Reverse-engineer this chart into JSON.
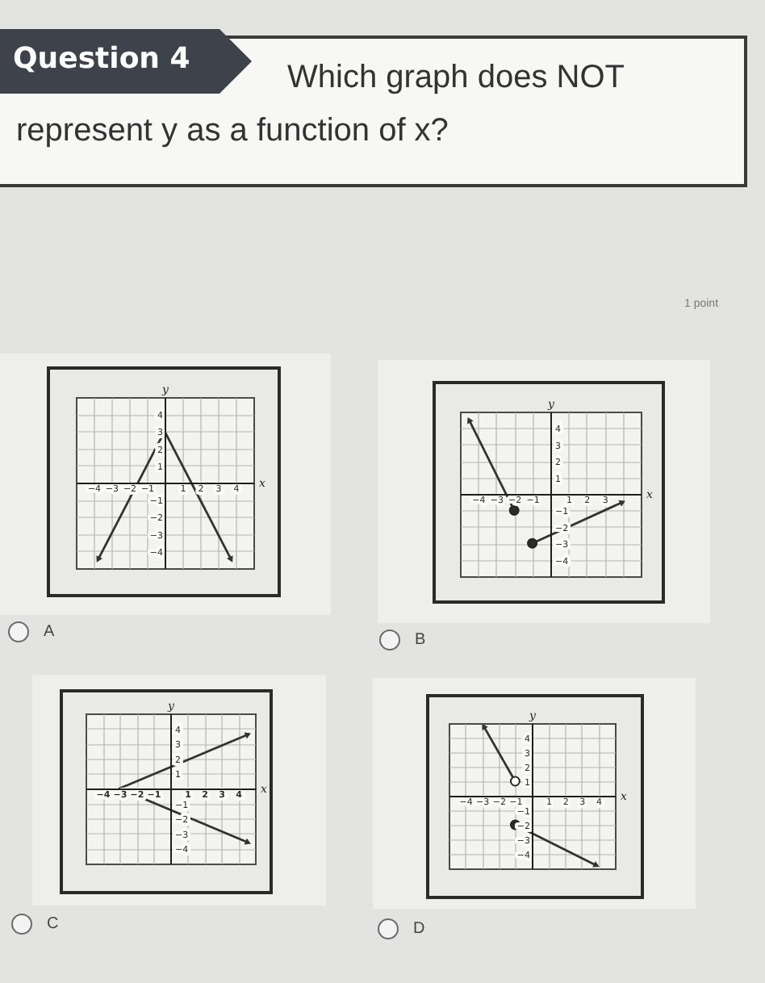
{
  "chart_data": [
    {
      "type": "line",
      "title": "A",
      "xlabel": "x",
      "ylabel": "y",
      "annotations": [
        "Question 4",
        "Which graph does NOT represent y as a function of x?",
        "1 point"
      ],
      "xlim": [
        -5,
        5
      ],
      "ylim": [
        -5,
        5
      ],
      "xticks": [
        -4,
        -3,
        -2,
        -1,
        1,
        2,
        3,
        4
      ],
      "yticks": [
        -4,
        -3,
        -2,
        -1,
        1,
        2,
        3,
        4
      ],
      "grid": true,
      "series": [
        {
          "color": "#333333",
          "x": [
            -3.75,
            0,
            3.75
          ],
          "values": [
            -4.5,
            3,
            -4.5
          ]
        }
      ]
    },
    {
      "type": "line",
      "title": "B",
      "xlabel": "x",
      "ylabel": "y",
      "xlim": [
        -5,
        5
      ],
      "ylim": [
        -5,
        5
      ],
      "xticks": [
        -4,
        -3,
        -2,
        -1,
        1,
        2,
        3,
        {
          "value": 4,
          "label": null
        }
      ],
      "yticks": [
        -4,
        -3,
        -2,
        -1,
        1,
        2,
        3,
        4
      ],
      "grid": true,
      "series": [
        {
          "color": "#333333",
          "x": [
            -4.5,
            -2
          ],
          "values": [
            4.5,
            -1
          ]
        },
        {
          "color": "#333333",
          "x": [
            -1,
            4
          ],
          "values": [
            -3,
            -0.5
          ]
        },
        {
          "type": "scatter",
          "marker": "circle",
          "color": "#2b2b2b",
          "x": [
            -2,
            -1
          ],
          "values": [
            -1,
            -3
          ]
        }
      ]
    },
    {
      "type": "line",
      "title": "C",
      "xlabel": "x",
      "ylabel": "y",
      "xlim": [
        -5,
        5
      ],
      "ylim": [
        -5,
        5
      ],
      "xticks": [
        -4,
        -3,
        -2,
        -1,
        1,
        2,
        3,
        4
      ],
      "yticks": [
        -4,
        -3,
        -2,
        -1,
        1,
        2,
        3,
        4
      ],
      "grid": true,
      "series": [
        {
          "color": "#333333",
          "x": [
            4.6,
            -3,
            4.6
          ],
          "values": [
            3.6,
            0,
            -3.6
          ]
        }
      ]
    },
    {
      "type": "line",
      "title": "D",
      "xlabel": "x",
      "ylabel": "y",
      "xlim": [
        -5,
        5
      ],
      "ylim": [
        -5,
        5
      ],
      "xticks": [
        -4,
        -3,
        -2,
        -1,
        1,
        2,
        3,
        4
      ],
      "yticks": [
        -4,
        -3,
        -2,
        -1,
        1,
        2,
        3,
        4
      ],
      "grid": true,
      "series": [
        {
          "color": "#333333",
          "x": [
            -2.9,
            -1
          ],
          "values": [
            4.8,
            1
          ]
        },
        {
          "color": "#333333",
          "x": [
            -1,
            3.9
          ],
          "values": [
            -2,
            -4.8
          ]
        },
        {
          "type": "scatter",
          "marker": "circle",
          "color": "#ffffff",
          "x": [
            -1
          ],
          "values": [
            1
          ]
        },
        {
          "type": "scatter",
          "marker": "circle",
          "color": "#2b2b2b",
          "x": [
            -1
          ],
          "values": [
            -2
          ]
        }
      ]
    }
  ]
}
